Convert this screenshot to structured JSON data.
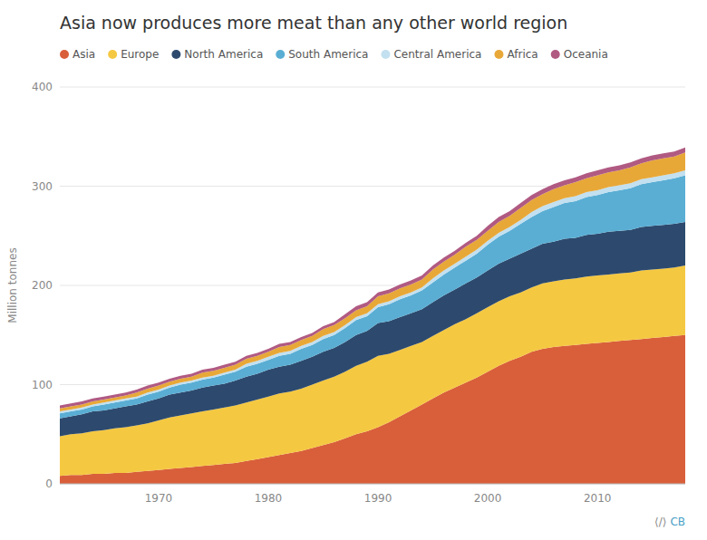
{
  "chart_data": {
    "type": "area",
    "stacked": true,
    "title": "Asia now produces more meat than any other world region",
    "ylabel": "Million tonnes",
    "x": [
      1961,
      1962,
      1963,
      1964,
      1965,
      1966,
      1967,
      1968,
      1969,
      1970,
      1971,
      1972,
      1973,
      1974,
      1975,
      1976,
      1977,
      1978,
      1979,
      1980,
      1981,
      1982,
      1983,
      1984,
      1985,
      1986,
      1987,
      1988,
      1989,
      1990,
      1991,
      1992,
      1993,
      1994,
      1995,
      1996,
      1997,
      1998,
      1999,
      2000,
      2001,
      2002,
      2003,
      2004,
      2005,
      2006,
      2007,
      2008,
      2009,
      2010,
      2011,
      2012,
      2013,
      2014,
      2015,
      2016,
      2017,
      2018
    ],
    "series": [
      {
        "name": "Asia",
        "color": "#d95f3b",
        "values": [
          8,
          9,
          9,
          10,
          10,
          11,
          11,
          12,
          13,
          14,
          15,
          16,
          17,
          18,
          19,
          20,
          21,
          23,
          25,
          27,
          29,
          31,
          33,
          36,
          39,
          42,
          46,
          50,
          53,
          57,
          62,
          68,
          74,
          80,
          86,
          92,
          97,
          102,
          107,
          113,
          119,
          124,
          128,
          133,
          136,
          138,
          139,
          140,
          141,
          142,
          143,
          144,
          145,
          146,
          147,
          148,
          149,
          150
        ]
      },
      {
        "name": "Europe",
        "color": "#f5c842",
        "values": [
          40,
          41,
          42,
          43,
          44,
          45,
          46,
          47,
          48,
          50,
          52,
          53,
          54,
          55,
          56,
          57,
          58,
          59,
          60,
          61,
          62,
          62,
          63,
          64,
          65,
          66,
          67,
          69,
          70,
          72,
          69,
          67,
          65,
          63,
          63,
          63,
          64,
          64,
          65,
          65,
          65,
          65,
          65,
          65,
          66,
          66,
          67,
          67,
          68,
          68,
          68,
          68,
          68,
          69,
          69,
          69,
          69,
          70
        ]
      },
      {
        "name": "North America",
        "color": "#2d4a6e",
        "values": [
          18,
          18,
          19,
          20,
          20,
          20,
          21,
          21,
          22,
          22,
          23,
          23,
          23,
          24,
          24,
          24,
          25,
          26,
          26,
          27,
          27,
          27,
          28,
          28,
          29,
          29,
          30,
          31,
          31,
          33,
          33,
          33,
          33,
          33,
          34,
          35,
          35,
          36,
          36,
          37,
          38,
          38,
          39,
          39,
          40,
          40,
          41,
          41,
          42,
          42,
          43,
          43,
          43,
          44,
          44,
          44,
          44,
          44
        ]
      },
      {
        "name": "South America",
        "color": "#5aaed4",
        "values": [
          5,
          5,
          5,
          5,
          6,
          6,
          6,
          6,
          7,
          7,
          7,
          8,
          8,
          8,
          8,
          9,
          9,
          10,
          10,
          10,
          11,
          11,
          12,
          12,
          13,
          13,
          14,
          15,
          15,
          16,
          17,
          18,
          18,
          19,
          20,
          21,
          22,
          23,
          24,
          26,
          27,
          28,
          30,
          32,
          33,
          35,
          36,
          37,
          38,
          39,
          40,
          41,
          42,
          43,
          44,
          45,
          46,
          47
        ]
      },
      {
        "name": "Central America",
        "color": "#c2e0f0",
        "values": [
          2,
          2,
          2,
          2,
          2,
          2,
          2,
          2,
          2,
          2,
          2,
          2,
          2,
          2,
          2,
          2,
          2,
          3,
          3,
          3,
          3,
          3,
          3,
          3,
          3,
          3,
          3,
          3,
          3,
          3,
          3,
          3,
          3,
          3,
          4,
          4,
          4,
          4,
          4,
          4,
          4,
          4,
          4,
          5,
          5,
          5,
          5,
          5,
          5,
          5,
          5,
          5,
          5,
          5,
          5,
          5,
          5,
          5
        ]
      },
      {
        "name": "Africa",
        "color": "#e8a838",
        "values": [
          3,
          3,
          3,
          3,
          3,
          3,
          3,
          4,
          4,
          4,
          4,
          4,
          4,
          5,
          5,
          5,
          5,
          5,
          5,
          5,
          6,
          6,
          6,
          6,
          7,
          7,
          7,
          7,
          7,
          8,
          8,
          8,
          8,
          8,
          9,
          9,
          9,
          10,
          10,
          10,
          11,
          11,
          12,
          12,
          12,
          13,
          13,
          14,
          14,
          15,
          15,
          15,
          16,
          16,
          17,
          17,
          17,
          18
        ]
      },
      {
        "name": "Oceania",
        "color": "#b05a82",
        "values": [
          3,
          3,
          3,
          3,
          3,
          3,
          3,
          3,
          3,
          3,
          3,
          3,
          3,
          3,
          3,
          3,
          3,
          3,
          3,
          3,
          3,
          3,
          3,
          3,
          3,
          3,
          4,
          4,
          4,
          4,
          4,
          4,
          4,
          4,
          4,
          4,
          4,
          4,
          4,
          5,
          5,
          5,
          5,
          5,
          5,
          5,
          5,
          5,
          5,
          5,
          5,
          5,
          5,
          5,
          5,
          5,
          5,
          5
        ]
      }
    ],
    "xlim": [
      1961,
      2018
    ],
    "xticks": [
      1970,
      1980,
      1990,
      2000,
      2010
    ],
    "ylim": [
      0,
      400
    ],
    "yticks": [
      0,
      100,
      200,
      300,
      400
    ],
    "grid": true,
    "legend": "upper left",
    "annotations": [
      {
        "text": "⟨/⟩",
        "color": "#888888"
      },
      {
        "text": "CB",
        "color": "#4A9FC7"
      }
    ]
  }
}
